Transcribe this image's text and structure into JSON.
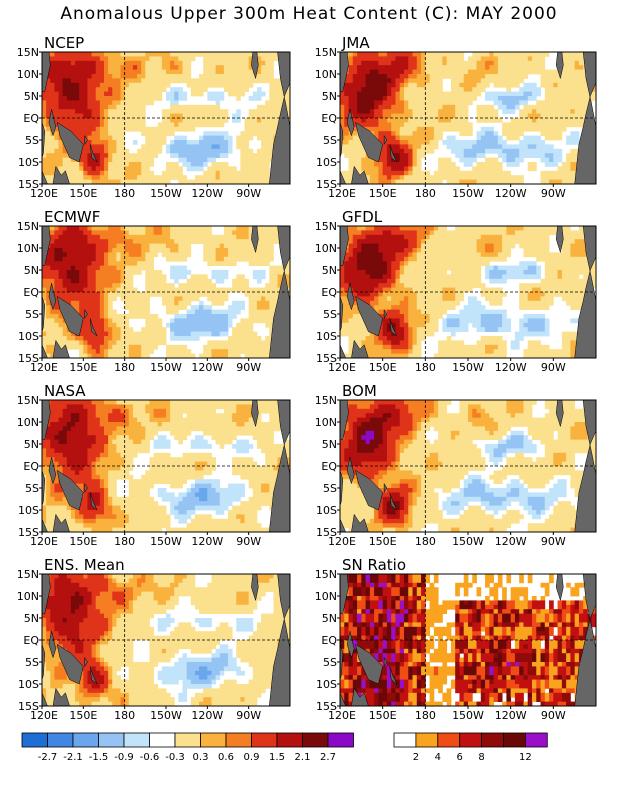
{
  "figure": {
    "title": "Anomalous Upper 300m Heat Content (C): MAY 2000"
  },
  "colors": {
    "land": "#666666",
    "anomaly_palette": [
      "#1e6fd4",
      "#3f87e0",
      "#6aa6ec",
      "#95c4f4",
      "#c2e4fa",
      "#ffffff",
      "#fbe08e",
      "#f9b23e",
      "#f57d22",
      "#e0341a",
      "#b3100f",
      "#7a0a0a",
      "#8a0ac8"
    ],
    "ratio_palette": [
      "#ffffff",
      "#f9a31e",
      "#f04d16",
      "#c01010",
      "#900a0a",
      "#6a0808",
      "#9a10c8"
    ]
  },
  "chart_data": [
    {
      "type": "heatmap",
      "title": "NCEP",
      "x_ticks": [
        "120E",
        "150E",
        "180",
        "150W",
        "120W",
        "90W"
      ],
      "y_ticks": [
        "15N",
        "10N",
        "5N",
        "EQ",
        "5S",
        "10S",
        "15S"
      ],
      "xlim": [
        120,
        300
      ],
      "ylim": [
        -15,
        15
      ],
      "pattern": "warm_west_cold_east"
    },
    {
      "type": "heatmap",
      "title": "JMA",
      "x_ticks": [
        "120E",
        "150E",
        "180",
        "150W",
        "120W",
        "90W"
      ],
      "y_ticks": [
        "15N",
        "10N",
        "5N",
        "EQ",
        "5S",
        "10S",
        "15S"
      ],
      "xlim": [
        120,
        300
      ],
      "ylim": [
        -15,
        15
      ],
      "pattern": "warm_west_cold_east"
    },
    {
      "type": "heatmap",
      "title": "ECMWF",
      "x_ticks": [
        "120E",
        "150E",
        "180",
        "150W",
        "120W",
        "90W"
      ],
      "y_ticks": [
        "15N",
        "10N",
        "5N",
        "EQ",
        "5S",
        "10S",
        "15S"
      ],
      "xlim": [
        120,
        300
      ],
      "ylim": [
        -15,
        15
      ],
      "pattern": "warm_west_cold_east"
    },
    {
      "type": "heatmap",
      "title": "GFDL",
      "x_ticks": [
        "120E",
        "150E",
        "180",
        "150W",
        "120W",
        "90W"
      ],
      "y_ticks": [
        "15N",
        "10N",
        "5N",
        "EQ",
        "5S",
        "10S",
        "15S"
      ],
      "xlim": [
        120,
        300
      ],
      "ylim": [
        -15,
        15
      ],
      "pattern": "warm_west_cold_east"
    },
    {
      "type": "heatmap",
      "title": "NASA",
      "x_ticks": [
        "120E",
        "150E",
        "180",
        "150W",
        "120W",
        "90W"
      ],
      "y_ticks": [
        "15N",
        "10N",
        "5N",
        "EQ",
        "5S",
        "10S",
        "15S"
      ],
      "xlim": [
        120,
        300
      ],
      "ylim": [
        -15,
        15
      ],
      "pattern": "warm_west_cold_east"
    },
    {
      "type": "heatmap",
      "title": "BOM",
      "x_ticks": [
        "120E",
        "150E",
        "180",
        "150W",
        "120W",
        "90W"
      ],
      "y_ticks": [
        "15N",
        "10N",
        "5N",
        "EQ",
        "5S",
        "10S",
        "15S"
      ],
      "xlim": [
        120,
        300
      ],
      "ylim": [
        -15,
        15
      ],
      "pattern": "warm_west_cold_east"
    },
    {
      "type": "heatmap",
      "title": "ENS. Mean",
      "x_ticks": [
        "120E",
        "150E",
        "180",
        "150W",
        "120W",
        "90W"
      ],
      "y_ticks": [
        "15N",
        "10N",
        "5N",
        "EQ",
        "5S",
        "10S",
        "15S"
      ],
      "xlim": [
        120,
        300
      ],
      "ylim": [
        -15,
        15
      ],
      "pattern": "warm_west_cold_east"
    },
    {
      "type": "heatmap",
      "title": "SN Ratio",
      "x_ticks": [
        "120E",
        "150E",
        "180",
        "150W",
        "120W",
        "90W"
      ],
      "y_ticks": [
        "15N",
        "10N",
        "5N",
        "EQ",
        "5S",
        "10S",
        "15S"
      ],
      "xlim": [
        120,
        300
      ],
      "ylim": [
        -15,
        15
      ],
      "pattern": "signal_to_noise"
    }
  ],
  "colorbars": {
    "anomaly": {
      "labels": [
        "-2.7",
        "-2.1",
        "-1.5",
        "-0.9",
        "-0.6",
        "-0.3",
        "0.3",
        "0.6",
        "0.9",
        "1.5",
        "2.1",
        "2.7"
      ]
    },
    "ratio": {
      "labels": [
        "2",
        "4",
        "6",
        "8",
        "12"
      ]
    }
  }
}
